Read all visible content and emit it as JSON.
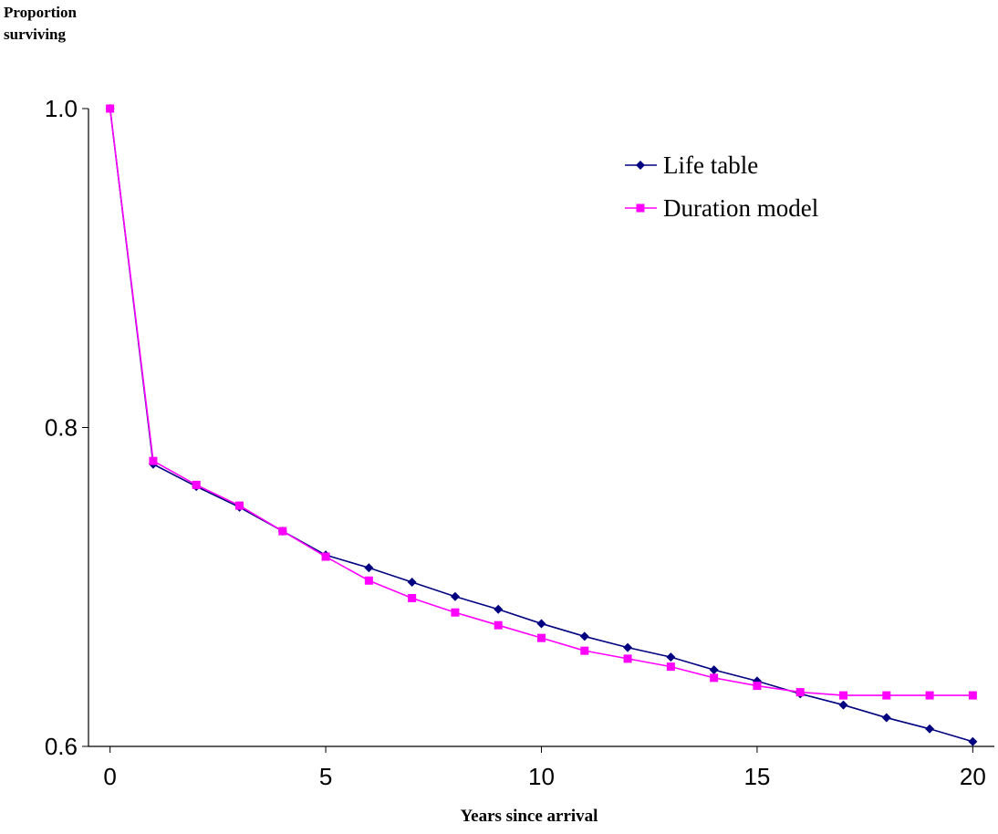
{
  "chart_data": {
    "type": "line",
    "y_label": "Proportion surviving",
    "x_label": "Years since arrival",
    "x": [
      0,
      1,
      2,
      3,
      4,
      5,
      6,
      7,
      8,
      9,
      10,
      11,
      12,
      13,
      14,
      15,
      16,
      17,
      18,
      19,
      20
    ],
    "series": [
      {
        "name": "Life table",
        "color": "#000080",
        "marker": "diamond",
        "values": [
          1.0,
          0.777,
          0.763,
          0.75,
          0.735,
          0.72,
          0.712,
          0.703,
          0.694,
          0.686,
          0.677,
          0.669,
          0.662,
          0.656,
          0.648,
          0.641,
          0.633,
          0.626,
          0.618,
          0.611,
          0.603
        ]
      },
      {
        "name": "Duration model",
        "color": "#ff00ff",
        "marker": "square",
        "values": [
          1.0,
          0.779,
          0.764,
          0.751,
          0.735,
          0.719,
          0.704,
          0.693,
          0.684,
          0.676,
          0.668,
          0.66,
          0.655,
          0.65,
          0.643,
          0.638,
          0.634,
          0.632,
          0.632,
          0.632,
          0.632
        ]
      }
    ],
    "xlim": [
      -0.5,
      20.5
    ],
    "xticks": [
      0,
      5,
      10,
      15,
      20
    ],
    "ylim": [
      0.6,
      1.0
    ],
    "yticks": [
      {
        "value": 0.6,
        "label": "0.6"
      },
      {
        "value": 0.8,
        "label": "0.8"
      },
      {
        "value": 1.0,
        "label": "1.0"
      }
    ],
    "grid": false,
    "legend": "upper right"
  }
}
